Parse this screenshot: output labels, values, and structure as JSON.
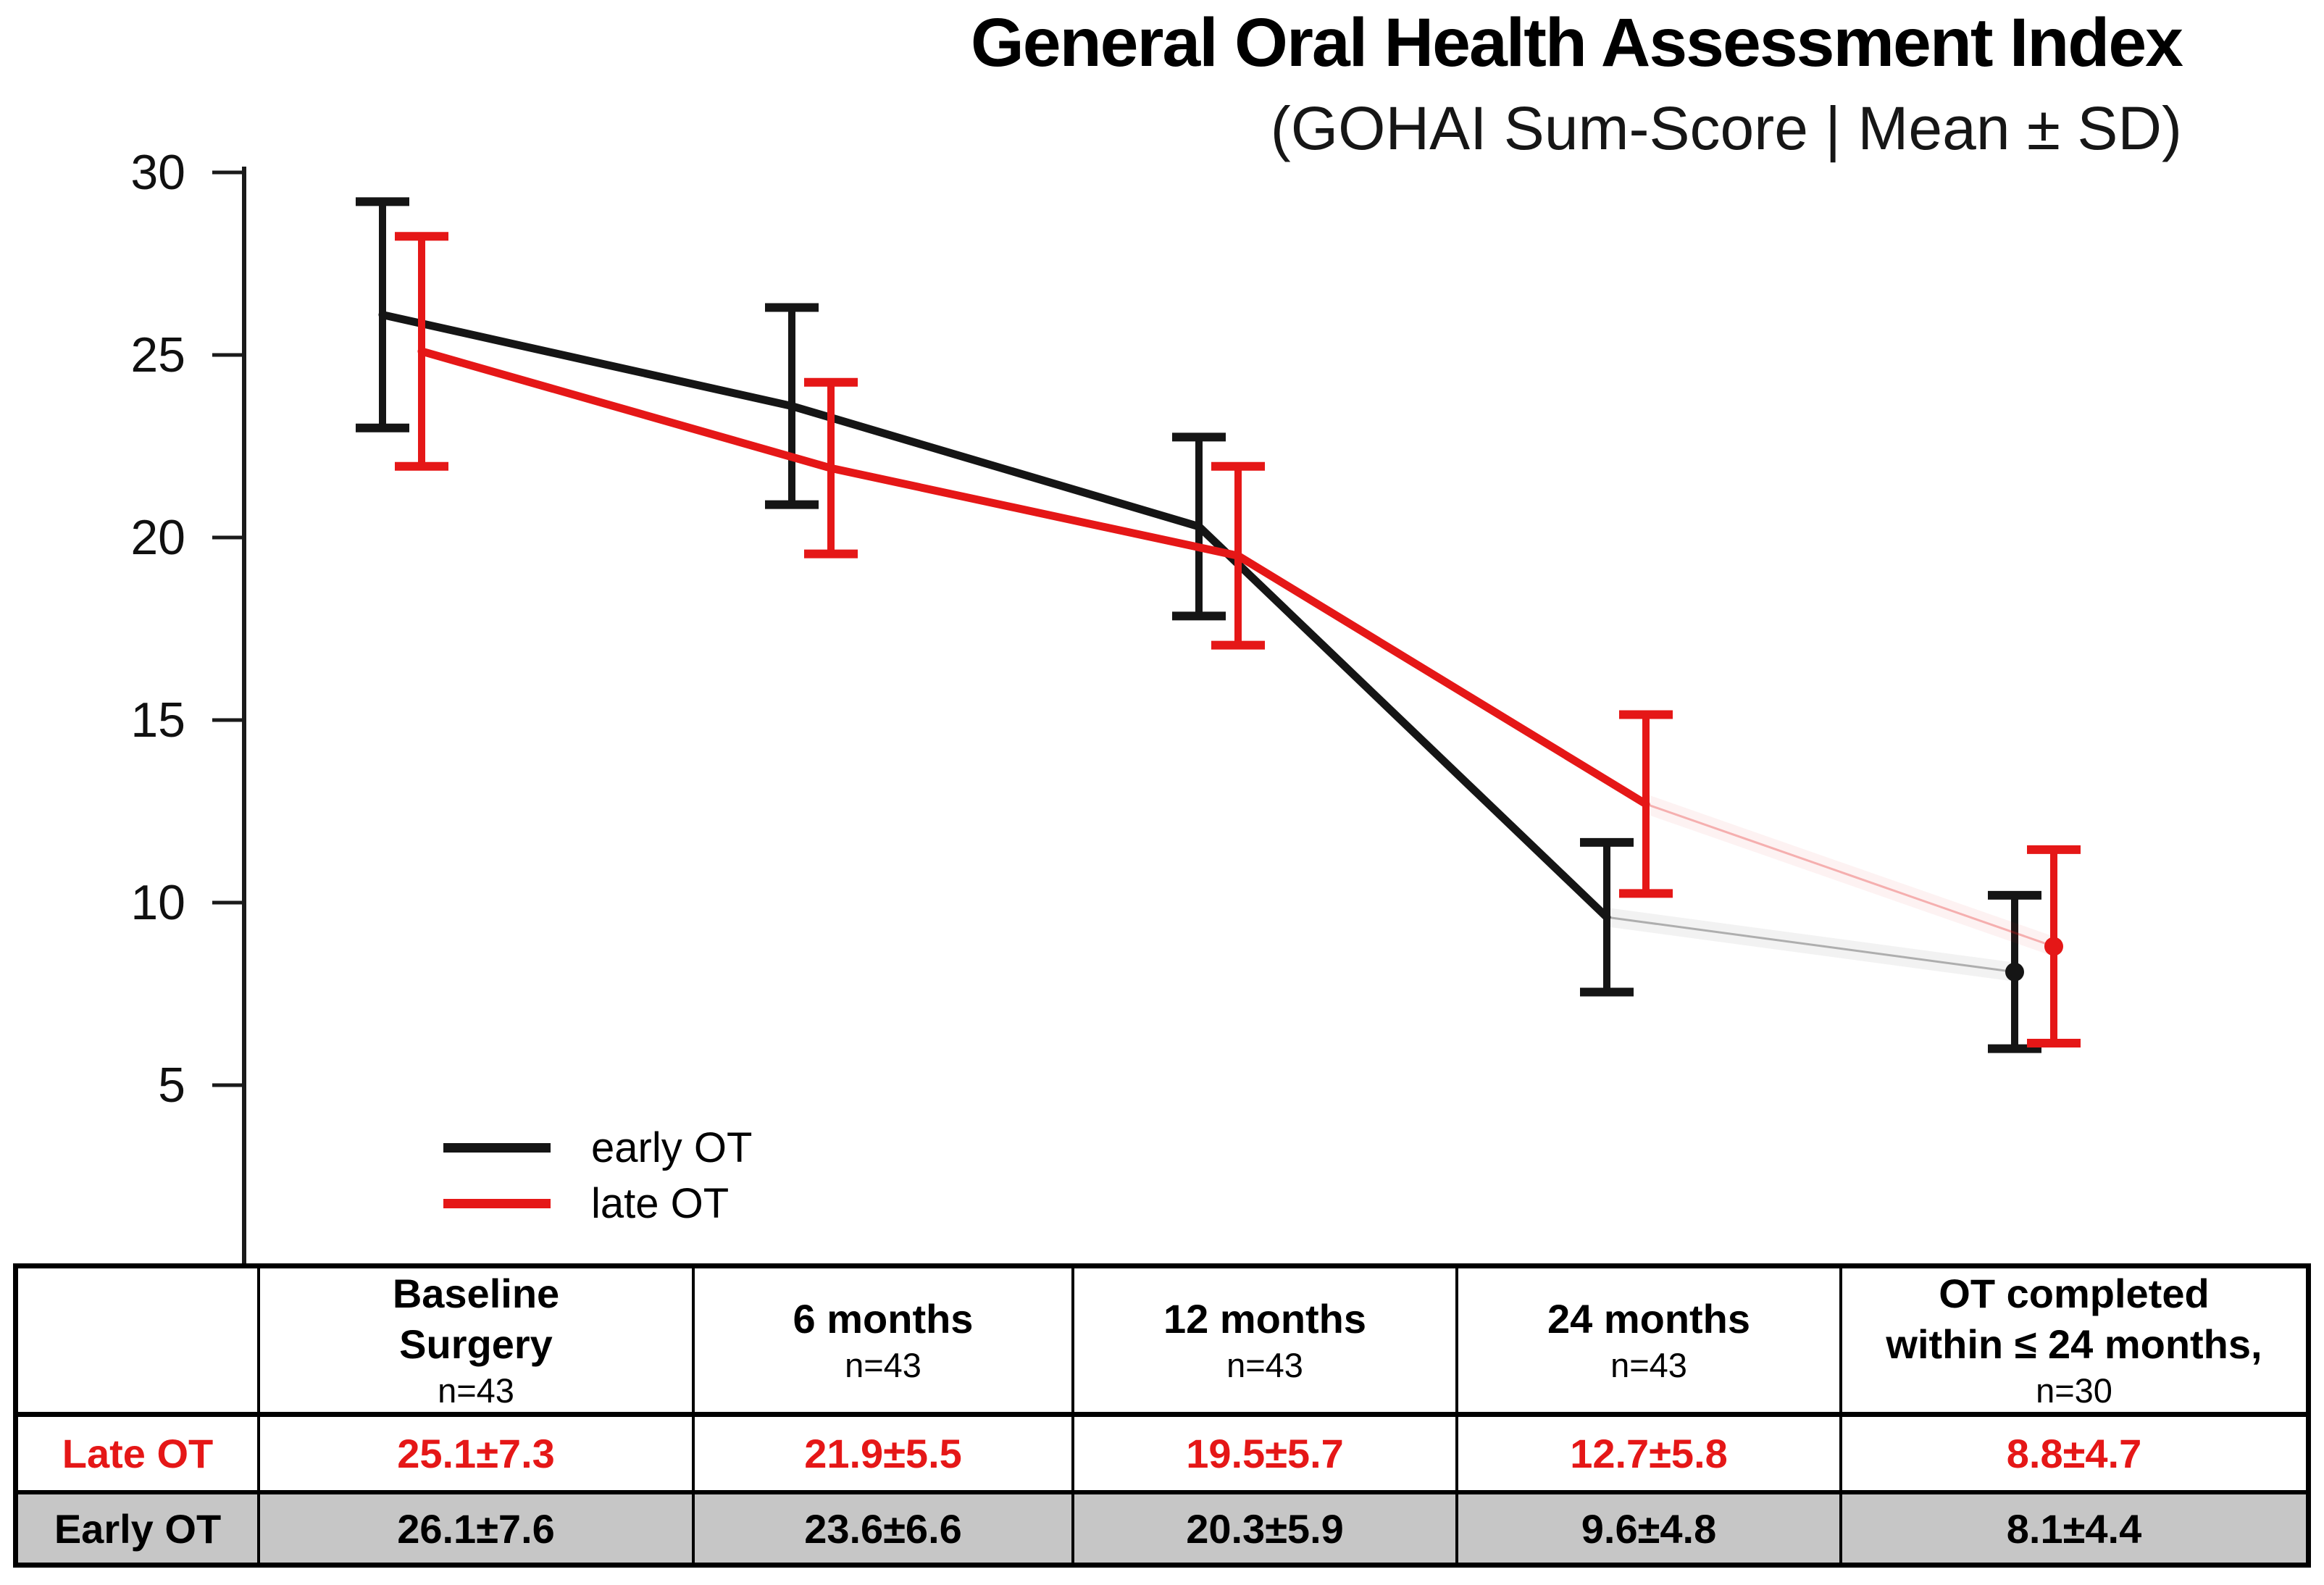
{
  "header": {
    "title": "General Oral Health Assessment Index",
    "subtitle": "(GOHAI Sum-Score | Mean ± SD)"
  },
  "legend": [
    {
      "label": "early OT",
      "color": "#151515"
    },
    {
      "label": "late OT",
      "color": "#e51717"
    }
  ],
  "y_axis": {
    "ticks": [
      30,
      25,
      20,
      15,
      10,
      5
    ],
    "min": 0,
    "max": 30
  },
  "chart_data": {
    "type": "line",
    "title": "General Oral Health Assessment Index",
    "subtitle": "(GOHAI Sum-Score | Mean ± SD)",
    "categories": [
      "Baseline Surgery",
      "6 months",
      "12 months",
      "24 months",
      "OT completed within ≤ 24 months"
    ],
    "sample_sizes": [
      43,
      43,
      43,
      43,
      30
    ],
    "ylim": [
      0,
      30
    ],
    "grid": false,
    "legend_position": "bottom-left-inside",
    "series": [
      {
        "name": "early OT",
        "color": "#151515",
        "means": [
          26.1,
          23.6,
          20.3,
          9.6,
          8.1
        ],
        "sd": [
          7.6,
          6.6,
          5.9,
          4.8,
          4.4
        ],
        "plotted_error_half": [
          3.1,
          2.7,
          2.45,
          2.05,
          2.1
        ],
        "last_segment_faint": true,
        "last_point_dot": true
      },
      {
        "name": "late OT",
        "color": "#e51717",
        "means": [
          25.1,
          21.9,
          19.5,
          12.7,
          8.8
        ],
        "sd": [
          7.3,
          5.5,
          5.7,
          5.8,
          4.7
        ],
        "plotted_error_half": [
          3.15,
          2.35,
          2.45,
          2.45,
          2.65
        ],
        "last_segment_faint": true,
        "last_point_dot": true
      }
    ]
  },
  "table": {
    "headers": [
      {
        "line1": "",
        "line2": "",
        "n": ""
      },
      {
        "line1": "Baseline",
        "line2": "Surgery",
        "n": "n=43"
      },
      {
        "line1": "6 months",
        "line2": "",
        "n": "n=43"
      },
      {
        "line1": "12 months",
        "line2": "",
        "n": "n=43"
      },
      {
        "line1": "24 months",
        "line2": "",
        "n": "n=43"
      },
      {
        "line1": "OT completed",
        "line2": "within ≤ 24 months,",
        "n": "n=30"
      }
    ],
    "rows": [
      {
        "label": "Late OT",
        "color": "#e51717",
        "background": "#ffffff",
        "values": [
          "25.1±7.3",
          "21.9±5.5",
          "19.5±5.7",
          "12.7±5.8",
          "8.8±4.7"
        ]
      },
      {
        "label": "Early OT",
        "color": "#000000",
        "background": "#c6c6c6",
        "values": [
          "26.1±7.6",
          "23.6±6.6",
          "20.3±5.9",
          "9.6±4.8",
          "8.1±4.4"
        ]
      }
    ]
  }
}
